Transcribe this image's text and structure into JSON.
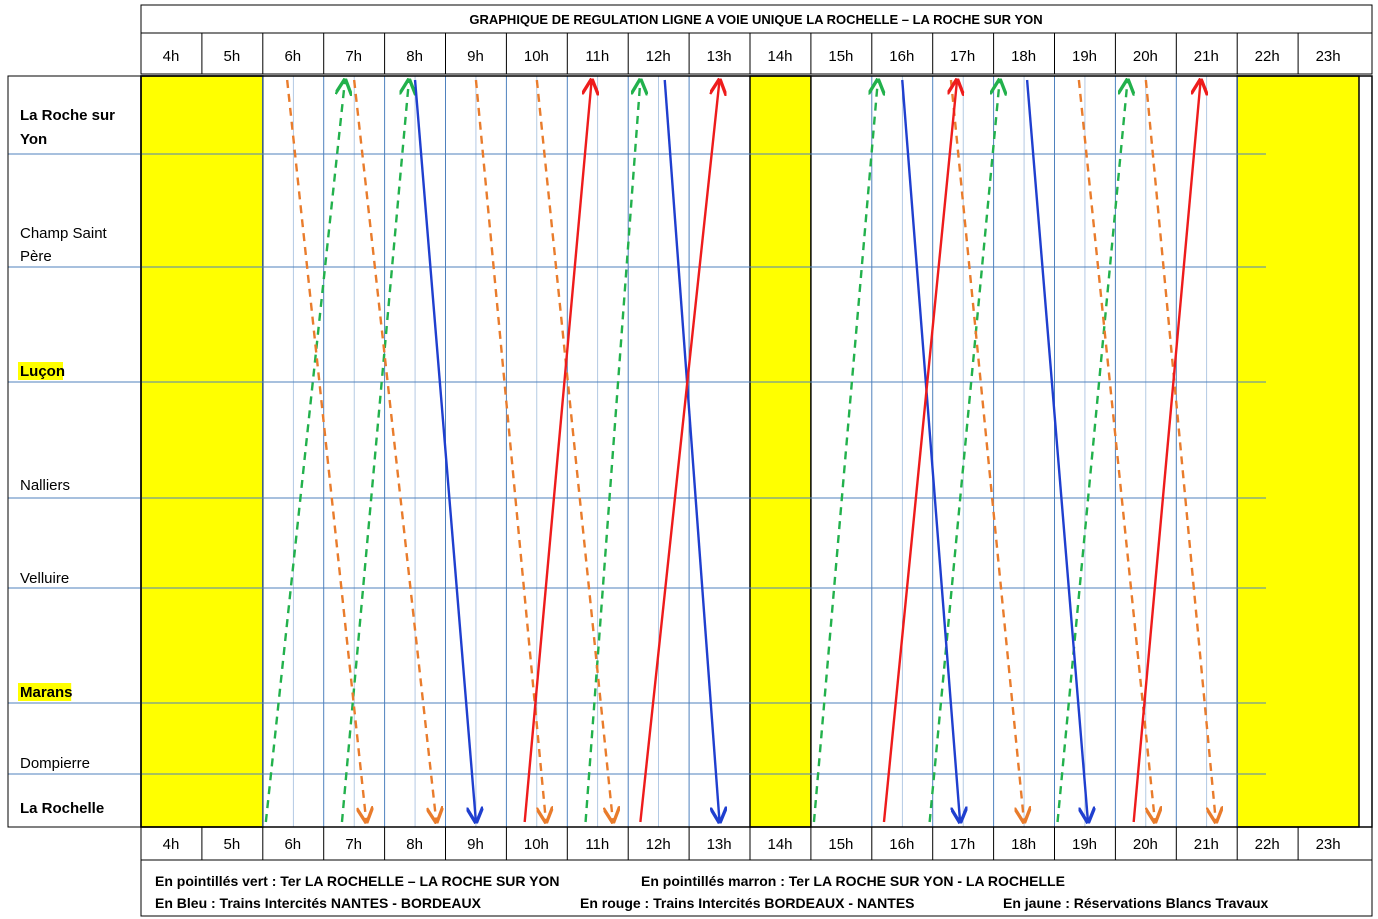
{
  "title": "GRAPHIQUE DE REGULATION LIGNE A VOIE UNIQUE LA ROCHELLE – LA ROCHE SUR YON",
  "hours": [
    "4h",
    "5h",
    "6h",
    "7h",
    "8h",
    "9h",
    "10h",
    "11h",
    "12h",
    "13h",
    "14h",
    "15h",
    "16h",
    "17h",
    "18h",
    "19h",
    "20h",
    "21h",
    "22h",
    "23h"
  ],
  "stations": [
    {
      "name": "La Roche sur Yon",
      "bold": true,
      "highlight": false
    },
    {
      "name": "Champ Saint Père",
      "bold": false,
      "highlight": false
    },
    {
      "name": "Luçon",
      "bold": true,
      "highlight": true
    },
    {
      "name": "Nalliers",
      "bold": false,
      "highlight": false
    },
    {
      "name": "Velluire",
      "bold": false,
      "highlight": false
    },
    {
      "name": "Marans",
      "bold": true,
      "highlight": true
    },
    {
      "name": "Dompierre",
      "bold": false,
      "highlight": false
    },
    {
      "name": "La Rochelle",
      "bold": true,
      "highlight": false
    }
  ],
  "colors": {
    "ter_green": "#22b14c",
    "ter_brown": "#e97c2c",
    "intercites_blue": "#1f3fcf",
    "intercites_red": "#ee1c1c",
    "blancs_travaux": "#ffff00",
    "grid_line": "#4f81bd"
  },
  "chart_data": {
    "type": "line",
    "title": "GRAPHIQUE DE REGULATION LIGNE A VOIE UNIQUE LA ROCHELLE – LA ROCHE SUR YON",
    "x_unit": "hour",
    "xlim": [
      4,
      24
    ],
    "blancs_travaux": [
      [
        4,
        6
      ],
      [
        14,
        15
      ],
      [
        22,
        24
      ]
    ],
    "series": [
      {
        "name": "Ter LA ROCHELLE – LA ROCHE SUR YON",
        "color": "#22b14c",
        "dashed": true,
        "direction": "up",
        "trains": [
          [
            6.05,
            7.35
          ],
          [
            7.3,
            8.4
          ],
          [
            11.3,
            12.2
          ],
          [
            15.05,
            16.1
          ],
          [
            16.95,
            18.1
          ],
          [
            19.05,
            20.2
          ]
        ]
      },
      {
        "name": "Ter LA ROCHE SUR YON - LA ROCHELLE",
        "color": "#e97c2c",
        "dashed": true,
        "direction": "down",
        "trains": [
          [
            6.4,
            7.7
          ],
          [
            7.5,
            8.85
          ],
          [
            9.5,
            10.65
          ],
          [
            10.5,
            11.75
          ],
          [
            17.3,
            18.5
          ],
          [
            19.4,
            20.65
          ],
          [
            20.5,
            21.65
          ]
        ]
      },
      {
        "name": "Trains Intercités NANTES - BORDEAUX",
        "color": "#1f3fcf",
        "dashed": false,
        "direction": "down",
        "trains": [
          [
            8.5,
            9.5
          ],
          [
            12.6,
            13.5
          ],
          [
            16.5,
            17.45
          ],
          [
            18.55,
            19.55
          ]
        ]
      },
      {
        "name": "Trains Intercités BORDEAUX - NANTES",
        "color": "#ee1c1c",
        "dashed": false,
        "direction": "up",
        "trains": [
          [
            10.3,
            11.4
          ],
          [
            12.2,
            13.5
          ],
          [
            16.2,
            17.4
          ],
          [
            20.3,
            21.4
          ]
        ]
      }
    ]
  },
  "legend": {
    "green_text": "En pointillés vert : Ter LA ROCHELLE – LA ROCHE SUR YON",
    "brown_text": "En pointillés marron : Ter LA ROCHE SUR YON  - LA ROCHELLE",
    "blue_text": "En Bleu : Trains Intercités NANTES - BORDEAUX",
    "red_text": "En rouge : Trains Intercités BORDEAUX - NANTES",
    "yellow_text": "En jaune : Réservations Blancs Travaux"
  }
}
